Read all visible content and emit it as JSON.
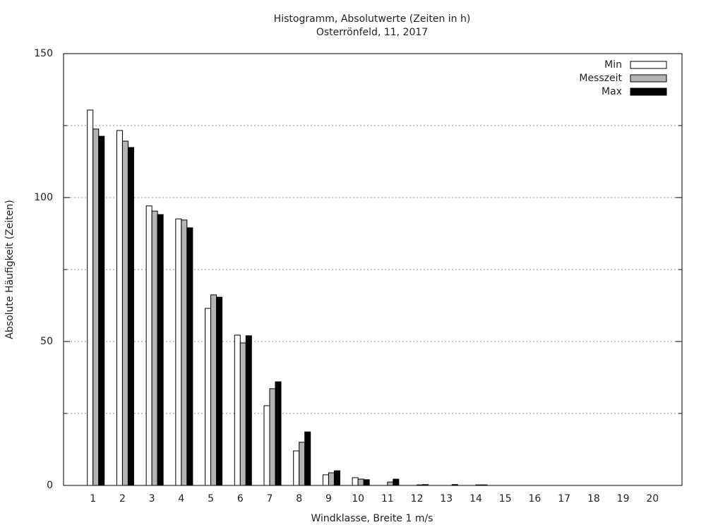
{
  "chart_data": {
    "type": "bar",
    "title": "Histogramm, Absolutwerte (Zeiten in h)",
    "subtitle": "Osterrönfeld, 11, 2017",
    "x_label": "Windklasse, Breite 1 m/s",
    "y_label": "Absolute Häufigkeit (Zeiten)",
    "categories": [
      "1",
      "2",
      "3",
      "4",
      "5",
      "6",
      "7",
      "8",
      "9",
      "10",
      "11",
      "12",
      "13",
      "14",
      "15",
      "16",
      "17",
      "18",
      "19",
      "20"
    ],
    "series": [
      {
        "name": "Min",
        "color": "#ffffff",
        "values": [
          130.4,
          123.3,
          97.1,
          92.6,
          61.5,
          52.2,
          27.7,
          12.0,
          3.7,
          2.7,
          0,
          0,
          0,
          0,
          0,
          0,
          0,
          0,
          0,
          0
        ]
      },
      {
        "name": "Messzeit",
        "color": "#b4b4b4",
        "values": [
          123.8,
          119.6,
          95.3,
          92.2,
          66.2,
          49.5,
          33.6,
          15.0,
          4.4,
          2.2,
          1.2,
          0.2,
          0,
          0.2,
          0,
          0,
          0,
          0,
          0,
          0
        ]
      },
      {
        "name": "Max",
        "color": "#000000",
        "values": [
          121.3,
          117.4,
          94.1,
          89.5,
          65.4,
          52.0,
          36.0,
          18.6,
          5.1,
          2.0,
          2.2,
          0.3,
          0.3,
          0.2,
          0,
          0,
          0,
          0,
          0,
          0
        ]
      }
    ],
    "ylim": [
      0,
      150
    ],
    "yticks": [
      0,
      50,
      100,
      150
    ],
    "yticks_minor": [
      25,
      75,
      125
    ],
    "grid": true,
    "legend": "top-right"
  }
}
